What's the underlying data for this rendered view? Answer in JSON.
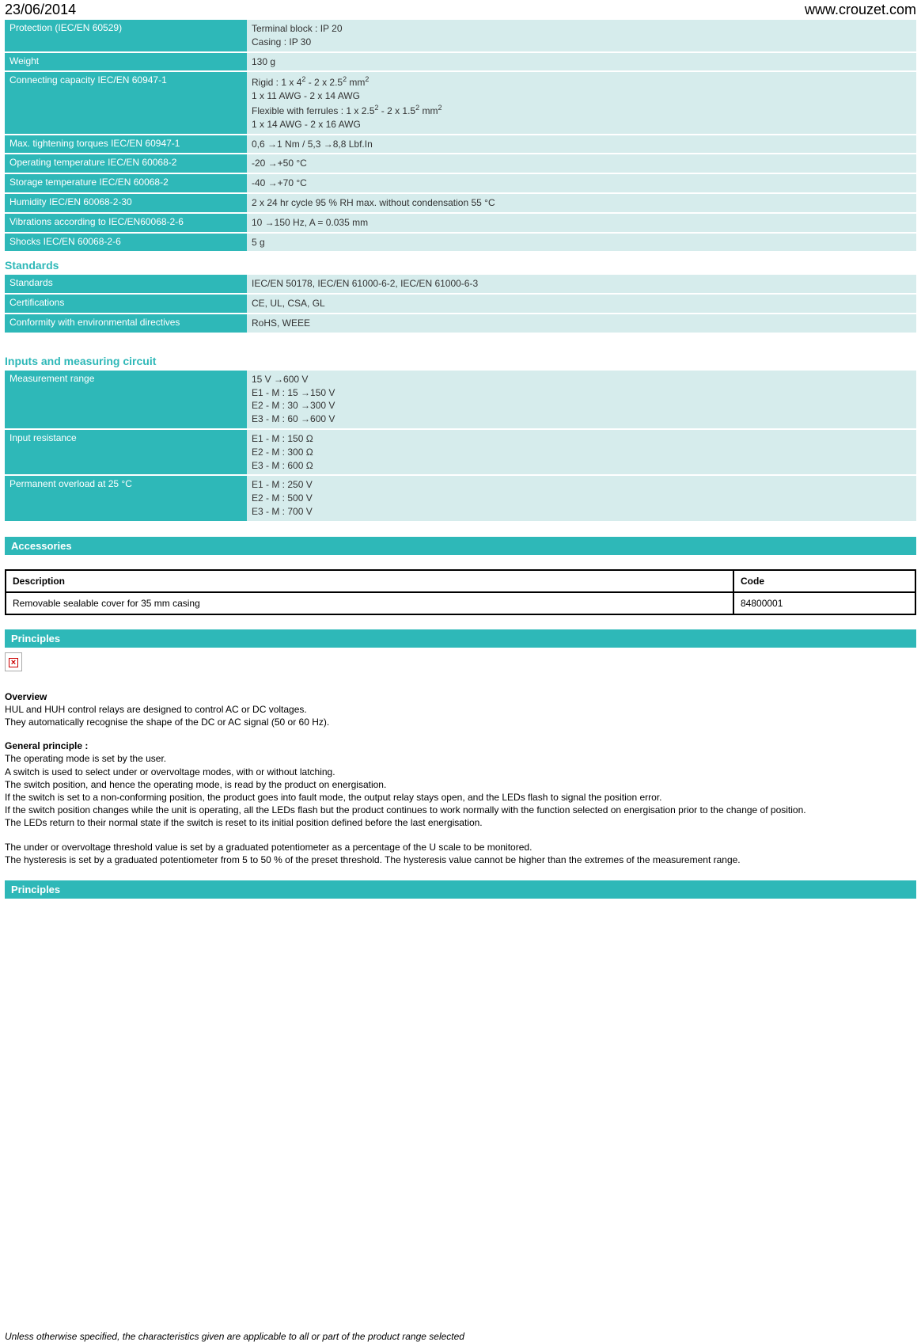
{
  "header": {
    "date": "23/06/2014",
    "url": "www.crouzet.com"
  },
  "colors": {
    "teal": "#2eb8b8",
    "teal_light": "#d6ecec",
    "black": "#000000",
    "white": "#ffffff"
  },
  "specs1": [
    {
      "label": "Protection (IEC/EN 60529)",
      "value": [
        "Terminal block : IP 20",
        "Casing : IP 30"
      ]
    },
    {
      "label": "Weight",
      "value": [
        "130 g"
      ]
    },
    {
      "label": "Connecting capacity IEC/EN 60947-1",
      "value": [
        "Rigid : 1 x 4² - 2 x 2.5² mm²",
        "1 x 11 AWG - 2 x 14 AWG",
        "Flexible with ferrules : 1 x 2.5² - 2 x 1.5² mm²",
        "1 x 14 AWG - 2 x 16 AWG"
      ]
    },
    {
      "label": "Max. tightening torques IEC/EN 60947-1",
      "value": [
        "0,6 →1 Nm / 5,3 →8,8 Lbf.In"
      ]
    },
    {
      "label": "Operating temperature IEC/EN 60068-2",
      "value": [
        "-20 →+50 °C"
      ]
    },
    {
      "label": "Storage temperature IEC/EN 60068-2",
      "value": [
        "-40 →+70 °C"
      ]
    },
    {
      "label": "Humidity IEC/EN 60068-2-30",
      "value": [
        "2 x 24 hr cycle 95 % RH max. without condensation 55 °C"
      ]
    },
    {
      "label": "Vibrations according to IEC/EN60068-2-6",
      "value": [
        "10 →150 Hz, A = 0.035 mm"
      ]
    },
    {
      "label": "Shocks IEC/EN 60068-2-6",
      "value": [
        "5 g"
      ]
    }
  ],
  "standards_header": "Standards",
  "standards": [
    {
      "label": "Standards",
      "value": [
        "IEC/EN 50178, IEC/EN 61000-6-2, IEC/EN 61000-6-3"
      ]
    },
    {
      "label": "Certifications",
      "value": [
        "CE, UL, CSA, GL"
      ]
    },
    {
      "label": "Conformity with environmental directives",
      "value": [
        "RoHS, WEEE"
      ]
    }
  ],
  "inputs_header": "Inputs and measuring circuit",
  "inputs": [
    {
      "label": "Measurement range",
      "value": [
        "15 V →600 V",
        "E1 - M : 15 →150 V",
        "E2 - M : 30 →300 V",
        "E3 - M : 60 →600 V"
      ]
    },
    {
      "label": "Input resistance",
      "value": [
        "E1 - M : 150 Ω",
        "E2 - M : 300 Ω",
        "E3 - M : 600 Ω"
      ]
    },
    {
      "label": "Permanent overload at 25 °C",
      "value": [
        "E1 - M : 250 V",
        "E2 - M : 500 V",
        "E3 - M : 700 V"
      ]
    }
  ],
  "accessories": {
    "band": "Accessories",
    "columns": [
      "Description",
      "Code"
    ],
    "rows": [
      [
        "Removable sealable cover for 35 mm casing",
        "84800001"
      ]
    ]
  },
  "principles1_band": "Principles",
  "overview": {
    "title": "Overview",
    "lines": [
      "HUL and HUH control relays are designed to control AC or DC voltages.",
      "They automatically recognise the shape of the DC or AC signal (50 or 60  Hz)."
    ]
  },
  "general": {
    "title": "General principle :",
    "lines": [
      "The operating mode is set by the user.",
      "A switch is used to select under or overvoltage modes, with or without latching.",
      "The switch position, and hence the operating mode, is read by the product on energisation.",
      "If the switch is set to a non-conforming position, the product goes into fault mode, the output relay stays open, and the LEDs flash to signal the position error.",
      "If the switch position changes while the unit is operating, all the LEDs flash but the product continues to work normally with the function selected on energisation prior to the change of position.",
      "The LEDs return to their normal state if the switch is reset to its initial position defined before the last energisation."
    ]
  },
  "general2": {
    "lines": [
      "The under or overvoltage threshold value is set by a graduated potentiometer as a percentage of the U scale to be monitored.",
      "The hysteresis is set by a graduated potentiometer from 5 to 50 % of the preset threshold. The hysteresis value cannot be higher than the extremes of the measurement range."
    ]
  },
  "principles2_band": "Principles",
  "footer": "Unless otherwise specified, the characteristics given are applicable to all or part of the product range selected"
}
